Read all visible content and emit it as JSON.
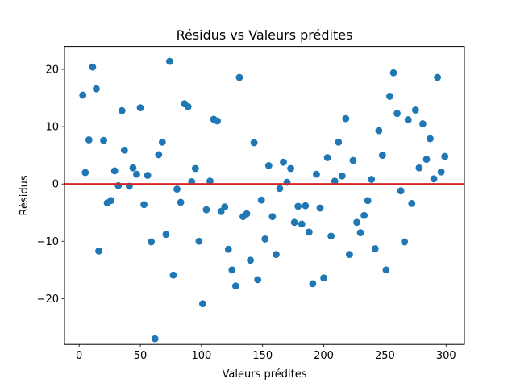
{
  "chart_data": {
    "type": "scatter",
    "title": "Résidus vs Valeurs prédites",
    "xlabel": "Valeurs prédites",
    "ylabel": "Résidus",
    "xlim": [
      -12,
      315
    ],
    "ylim": [
      -28,
      24
    ],
    "xticks": [
      0,
      50,
      100,
      150,
      200,
      250,
      300
    ],
    "yticks": [
      -20,
      -10,
      0,
      10,
      20
    ],
    "grid": false,
    "reference_line": {
      "y": 0,
      "color": "#d62728"
    },
    "marker_color": "#1f77b4",
    "points": [
      [
        3,
        15.5
      ],
      [
        5,
        2.0
      ],
      [
        8,
        7.7
      ],
      [
        11,
        20.4
      ],
      [
        14,
        16.6
      ],
      [
        16,
        -11.7
      ],
      [
        20,
        7.6
      ],
      [
        23,
        -3.3
      ],
      [
        26,
        -2.9
      ],
      [
        29,
        2.3
      ],
      [
        32,
        -0.3
      ],
      [
        35,
        12.8
      ],
      [
        37,
        5.9
      ],
      [
        41,
        -0.4
      ],
      [
        44,
        2.8
      ],
      [
        47,
        1.7
      ],
      [
        50,
        13.3
      ],
      [
        53,
        -3.6
      ],
      [
        56,
        1.5
      ],
      [
        59,
        -10.1
      ],
      [
        62,
        -27.0
      ],
      [
        65,
        5.1
      ],
      [
        68,
        7.3
      ],
      [
        71,
        -8.8
      ],
      [
        74,
        21.4
      ],
      [
        77,
        -15.9
      ],
      [
        80,
        -0.9
      ],
      [
        83,
        -3.2
      ],
      [
        86,
        14.0
      ],
      [
        89,
        13.5
      ],
      [
        92,
        0.4
      ],
      [
        95,
        2.7
      ],
      [
        98,
        -10.0
      ],
      [
        101,
        -20.9
      ],
      [
        104,
        -4.5
      ],
      [
        107,
        0.5
      ],
      [
        110,
        11.3
      ],
      [
        113,
        11.0
      ],
      [
        116,
        -4.8
      ],
      [
        119,
        -4.0
      ],
      [
        122,
        -11.4
      ],
      [
        125,
        -15.0
      ],
      [
        128,
        -17.8
      ],
      [
        131,
        18.6
      ],
      [
        134,
        -5.7
      ],
      [
        137,
        -5.2
      ],
      [
        140,
        -13.3
      ],
      [
        143,
        7.2
      ],
      [
        146,
        -16.7
      ],
      [
        149,
        -2.8
      ],
      [
        152,
        -9.6
      ],
      [
        155,
        3.2
      ],
      [
        158,
        -5.7
      ],
      [
        161,
        -12.3
      ],
      [
        164,
        -0.8
      ],
      [
        167,
        3.8
      ],
      [
        170,
        0.3
      ],
      [
        173,
        2.7
      ],
      [
        176,
        -6.7
      ],
      [
        179,
        -3.9
      ],
      [
        182,
        -7.0
      ],
      [
        185,
        -3.8
      ],
      [
        188,
        -8.4
      ],
      [
        191,
        -17.4
      ],
      [
        194,
        1.7
      ],
      [
        197,
        -4.2
      ],
      [
        200,
        -16.4
      ],
      [
        203,
        4.6
      ],
      [
        206,
        -9.1
      ],
      [
        209,
        0.5
      ],
      [
        212,
        7.3
      ],
      [
        215,
        1.4
      ],
      [
        218,
        11.4
      ],
      [
        221,
        -12.3
      ],
      [
        224,
        4.1
      ],
      [
        227,
        -6.7
      ],
      [
        230,
        -8.5
      ],
      [
        233,
        -5.5
      ],
      [
        236,
        -2.9
      ],
      [
        239,
        0.8
      ],
      [
        242,
        -11.3
      ],
      [
        245,
        9.3
      ],
      [
        248,
        5.0
      ],
      [
        251,
        -15.0
      ],
      [
        254,
        15.3
      ],
      [
        257,
        19.4
      ],
      [
        260,
        12.3
      ],
      [
        263,
        -1.2
      ],
      [
        266,
        -10.1
      ],
      [
        269,
        11.2
      ],
      [
        272,
        -3.4
      ],
      [
        275,
        12.9
      ],
      [
        278,
        2.8
      ],
      [
        281,
        10.5
      ],
      [
        284,
        4.3
      ],
      [
        287,
        7.9
      ],
      [
        290,
        0.9
      ],
      [
        293,
        18.6
      ],
      [
        296,
        2.1
      ],
      [
        299,
        4.8
      ]
    ]
  }
}
